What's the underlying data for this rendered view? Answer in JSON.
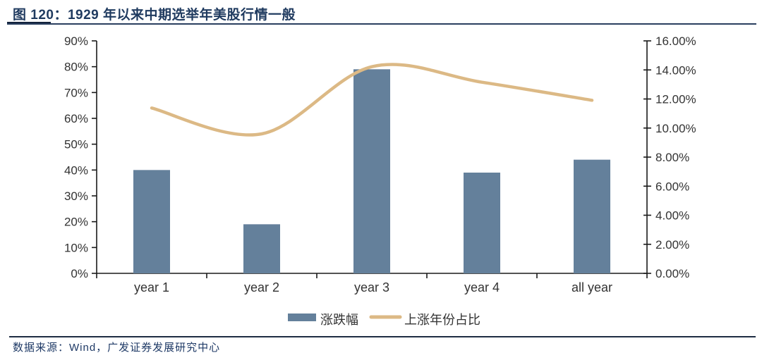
{
  "header": {
    "title": "图 120：1929 年以来中期选举年美股行情一般"
  },
  "footer": {
    "source": "数据来源：Wind，广发证券发展研究中心"
  },
  "colors": {
    "bar": "#64809b",
    "line": "#dcb985",
    "axis": "#1a1a1a",
    "tick_text": "#333333",
    "legend_text": "#333333",
    "title_navy": "#1f3a5f"
  },
  "chart_data": {
    "type": "bar",
    "subtype": "bar+line combo, dual y-axis",
    "categories": [
      "year 1",
      "year 2",
      "year 3",
      "year 4",
      "all year"
    ],
    "series": [
      {
        "name": "涨跌幅",
        "type": "bar",
        "axis": "right",
        "values_right_pct": [
          7.1,
          3.4,
          14.0,
          6.9,
          7.9
        ],
        "values_left_equiv_pct": [
          40,
          19,
          79,
          39,
          44
        ]
      },
      {
        "name": "上涨年份占比",
        "type": "line",
        "axis": "left",
        "values_left_pct": [
          64,
          54,
          80,
          74,
          67
        ],
        "values_right_equiv_pct": [
          11.4,
          9.6,
          14.2,
          13.2,
          11.9
        ]
      }
    ],
    "left_axis": {
      "min": 0,
      "max": 90,
      "ticks_top_to_bottom": [
        "90%",
        "80%",
        "70%",
        "60%",
        "50%",
        "40%",
        "30%",
        "20%",
        "10%",
        "0%"
      ]
    },
    "right_axis": {
      "min": 0,
      "max": 16,
      "ticks_top_to_bottom": [
        "16.00%",
        "14.00%",
        "12.00%",
        "10.00%",
        "8.00%",
        "6.00%",
        "4.00%",
        "2.00%",
        "0.00%"
      ]
    },
    "grid": false,
    "legend_position": "bottom-center",
    "title": "图 120：1929 年以来中期选举年美股行情一般"
  }
}
